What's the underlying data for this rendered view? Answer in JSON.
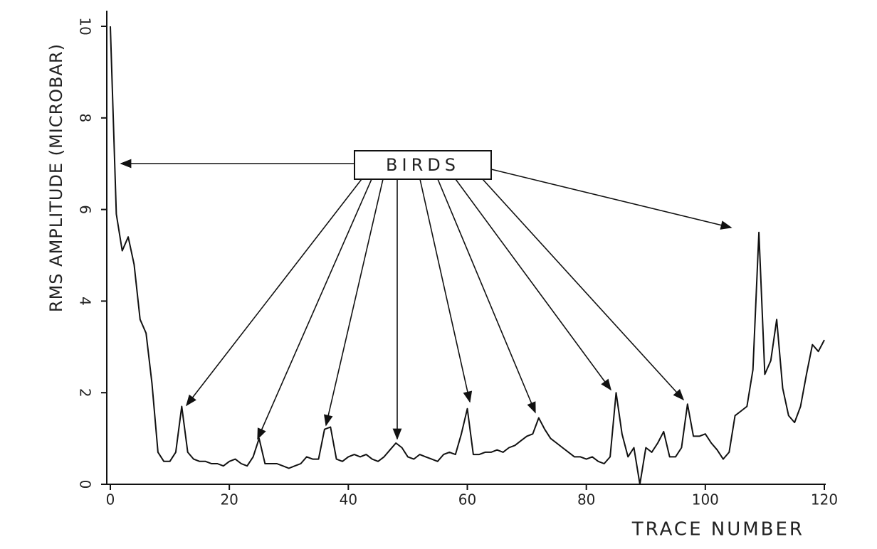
{
  "chart_data": {
    "type": "line",
    "xlabel": "TRACE NUMBER",
    "ylabel": "RMS AMPLITUDE (MICROBAR)",
    "annotation": "BIRDS",
    "color": "#111111",
    "x": [
      0,
      1,
      2,
      3,
      4,
      5,
      6,
      7,
      8,
      9,
      10,
      11,
      12,
      13,
      14,
      15,
      16,
      17,
      18,
      19,
      20,
      21,
      22,
      23,
      24,
      25,
      26,
      27,
      28,
      29,
      30,
      31,
      32,
      33,
      34,
      35,
      36,
      37,
      38,
      39,
      40,
      41,
      42,
      43,
      44,
      45,
      46,
      47,
      48,
      49,
      50,
      51,
      52,
      53,
      54,
      55,
      56,
      57,
      58,
      59,
      60,
      61,
      62,
      63,
      64,
      65,
      66,
      67,
      68,
      69,
      70,
      71,
      72,
      73,
      74,
      75,
      76,
      77,
      78,
      79,
      80,
      81,
      82,
      83,
      84,
      85,
      86,
      87,
      88,
      89,
      90,
      91,
      92,
      93,
      94,
      95,
      96,
      97,
      98,
      99,
      100,
      101,
      102,
      103,
      104,
      105,
      106,
      107,
      108,
      109,
      110,
      111,
      112,
      113,
      114,
      115,
      116,
      117,
      118,
      119,
      120
    ],
    "values": [
      10,
      5.9,
      5.1,
      5.4,
      4.8,
      3.6,
      3.3,
      2.2,
      0.7,
      0.5,
      0.5,
      0.7,
      1.7,
      0.7,
      0.55,
      0.5,
      0.5,
      0.45,
      0.45,
      0.4,
      0.5,
      0.55,
      0.45,
      0.4,
      0.6,
      1.0,
      0.45,
      0.45,
      0.45,
      0.4,
      0.35,
      0.4,
      0.45,
      0.6,
      0.55,
      0.55,
      1.2,
      1.25,
      0.55,
      0.5,
      0.6,
      0.65,
      0.6,
      0.65,
      0.55,
      0.5,
      0.6,
      0.75,
      0.9,
      0.8,
      0.6,
      0.55,
      0.65,
      0.6,
      0.55,
      0.5,
      0.65,
      0.7,
      0.65,
      1.1,
      1.65,
      0.65,
      0.65,
      0.7,
      0.7,
      0.75,
      0.7,
      0.8,
      0.85,
      0.95,
      1.05,
      1.1,
      1.45,
      1.2,
      1.0,
      0.9,
      0.8,
      0.7,
      0.6,
      0.6,
      0.55,
      0.6,
      0.5,
      0.45,
      0.6,
      2.0,
      1.1,
      0.6,
      0.8,
      0,
      0.8,
      0.7,
      0.9,
      1.15,
      0.6,
      0.6,
      0.8,
      1.75,
      1.05,
      1.05,
      1.1,
      0.9,
      0.75,
      0.55,
      0.7,
      1.5,
      1.6,
      1.7,
      2.5,
      5.5,
      2.4,
      2.7,
      3.6,
      2.1,
      1.5,
      1.35,
      1.7,
      2.4,
      3.05,
      2.9,
      3.15
    ],
    "xlim": [
      0,
      120
    ],
    "xticks": [
      0,
      20,
      40,
      60,
      80,
      100,
      120
    ],
    "ylim": [
      0,
      10
    ],
    "yticks": [
      0,
      2,
      4,
      6,
      8,
      10
    ]
  }
}
